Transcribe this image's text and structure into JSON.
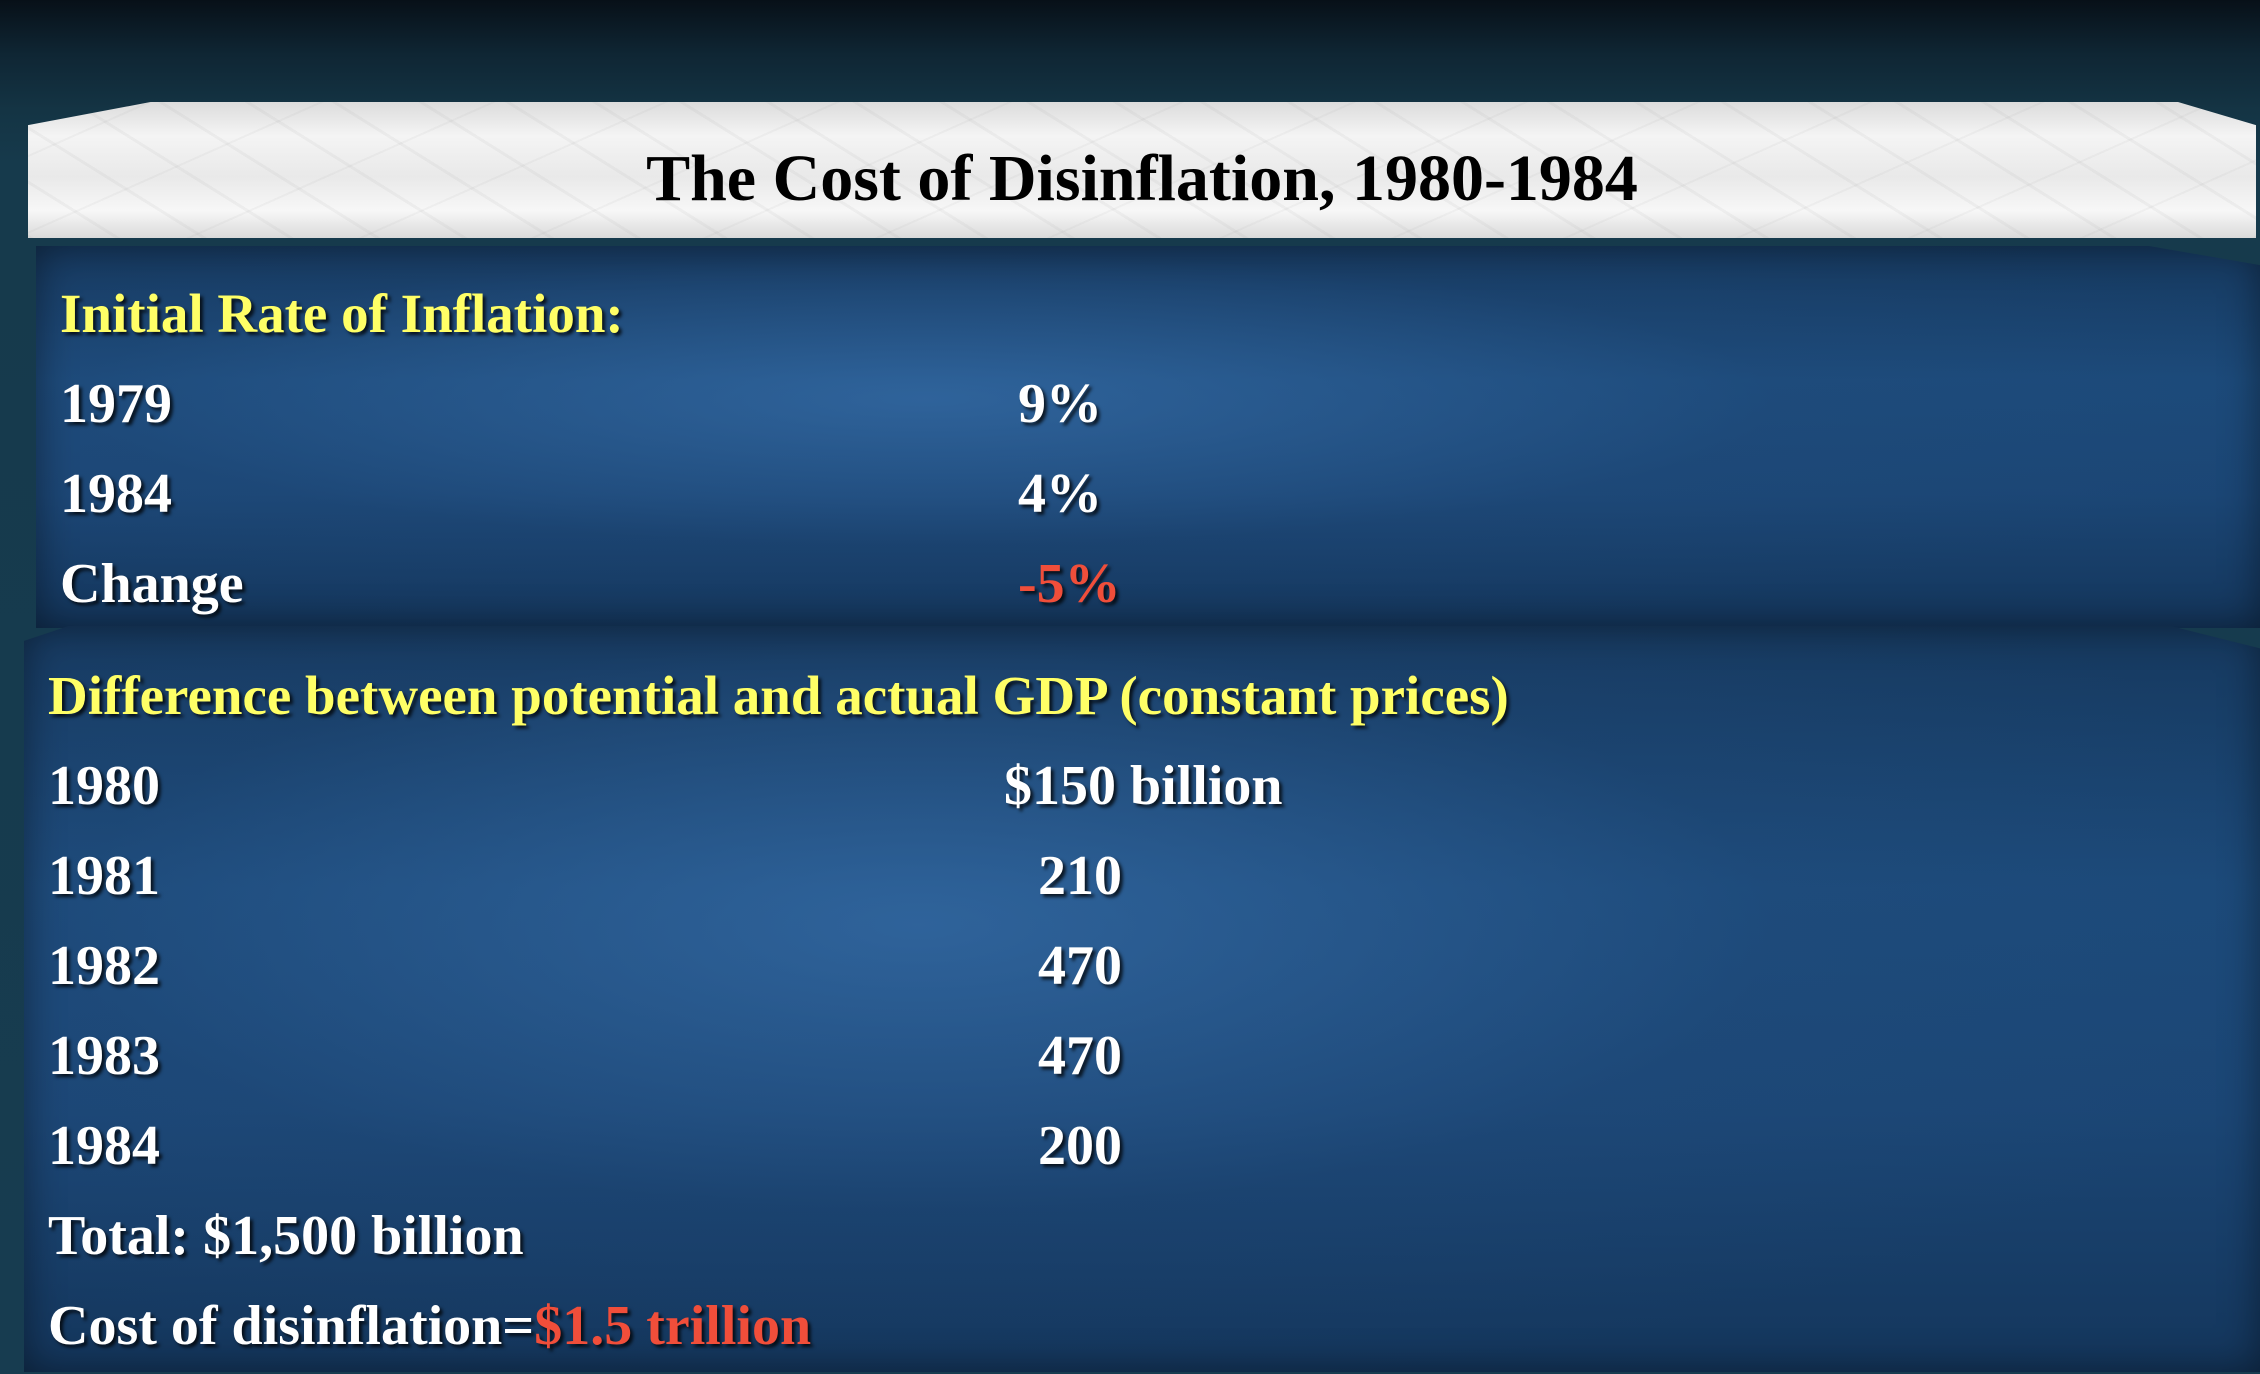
{
  "title": "The Cost of Disinflation, 1980-1984",
  "inflation": {
    "heading": "Initial Rate of Inflation:",
    "rows": [
      {
        "label": "1979",
        "value": "9%"
      },
      {
        "label": "1984",
        "value": "4%"
      },
      {
        "label": "Change",
        "value": "-5%"
      }
    ]
  },
  "gdp_gap": {
    "heading": "Difference between potential and actual GDP (constant prices)",
    "rows": [
      {
        "label": "1980",
        "value": "$150 billion"
      },
      {
        "label": "1981",
        "value": "210"
      },
      {
        "label": "1982",
        "value": "470"
      },
      {
        "label": "1983",
        "value": "470"
      },
      {
        "label": "1984",
        "value": "200"
      }
    ],
    "total": "Total: $1,500 billion",
    "cost_label": "Cost of disinflation=",
    "cost_value": "$1.5 trillion"
  },
  "colors": {
    "heading": "#ffff66",
    "emphasis": "#f04e3a",
    "panel": "#1c4a7a",
    "background": "#173c50"
  }
}
